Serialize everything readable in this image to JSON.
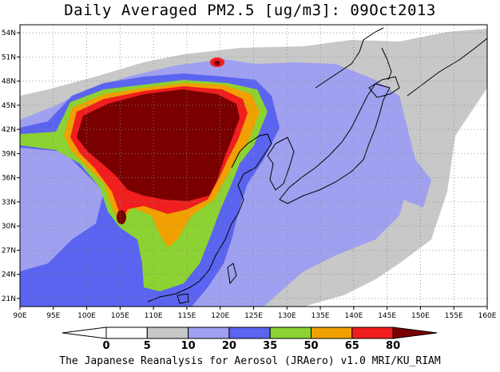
{
  "title": "Daily Averaged PM2.5 [ug/m3]: 09Oct2013",
  "credit": "The Japanese Reanalysis for Aerosol (JRAero) v1.0 MRI/KU_RIAM",
  "map": {
    "lon_range": [
      90,
      160
    ],
    "lat_range": [
      20,
      55
    ],
    "lon_ticks": [
      "90E",
      "95E",
      "100E",
      "105E",
      "110E",
      "115E",
      "120E",
      "125E",
      "130E",
      "135E",
      "140E",
      "145E",
      "150E",
      "155E",
      "160E"
    ],
    "lat_ticks": [
      "21N",
      "24N",
      "27N",
      "30N",
      "33N",
      "36N",
      "39N",
      "42N",
      "45N",
      "48N",
      "51N",
      "54N"
    ]
  },
  "colorbar": {
    "levels": [
      "0",
      "5",
      "10",
      "20",
      "35",
      "50",
      "65",
      "80"
    ],
    "colors": [
      "#ffffff",
      "#c8c8c8",
      "#a0a0f0",
      "#5a64f0",
      "#8cd232",
      "#f0a000",
      "#f01e1e",
      "#7a0000"
    ]
  }
}
